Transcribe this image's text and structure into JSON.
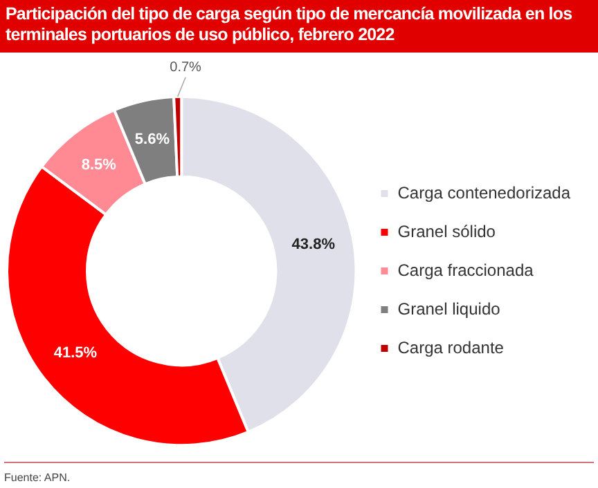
{
  "chart_data": {
    "type": "donut",
    "title": "Participación del tipo de carga según tipo de mercancía movilizada en los terminales portuarios de uso público, febrero 2022",
    "categories": [
      "Carga contenedorizada",
      "Granel sólido",
      "Carga fraccionada",
      "Granel liquido",
      "Carga rodante"
    ],
    "values": [
      43.8,
      41.5,
      8.5,
      5.6,
      0.7
    ],
    "colors": [
      "#e0e0ea",
      "#ff0000",
      "#ff8a94",
      "#7f7f7f",
      "#c00000"
    ],
    "value_labels": [
      "43.8%",
      "41.5%",
      "8.5%",
      "5.6%",
      "0.7%"
    ],
    "legend": "right",
    "annotations": [
      "Fuente: APN."
    ]
  }
}
